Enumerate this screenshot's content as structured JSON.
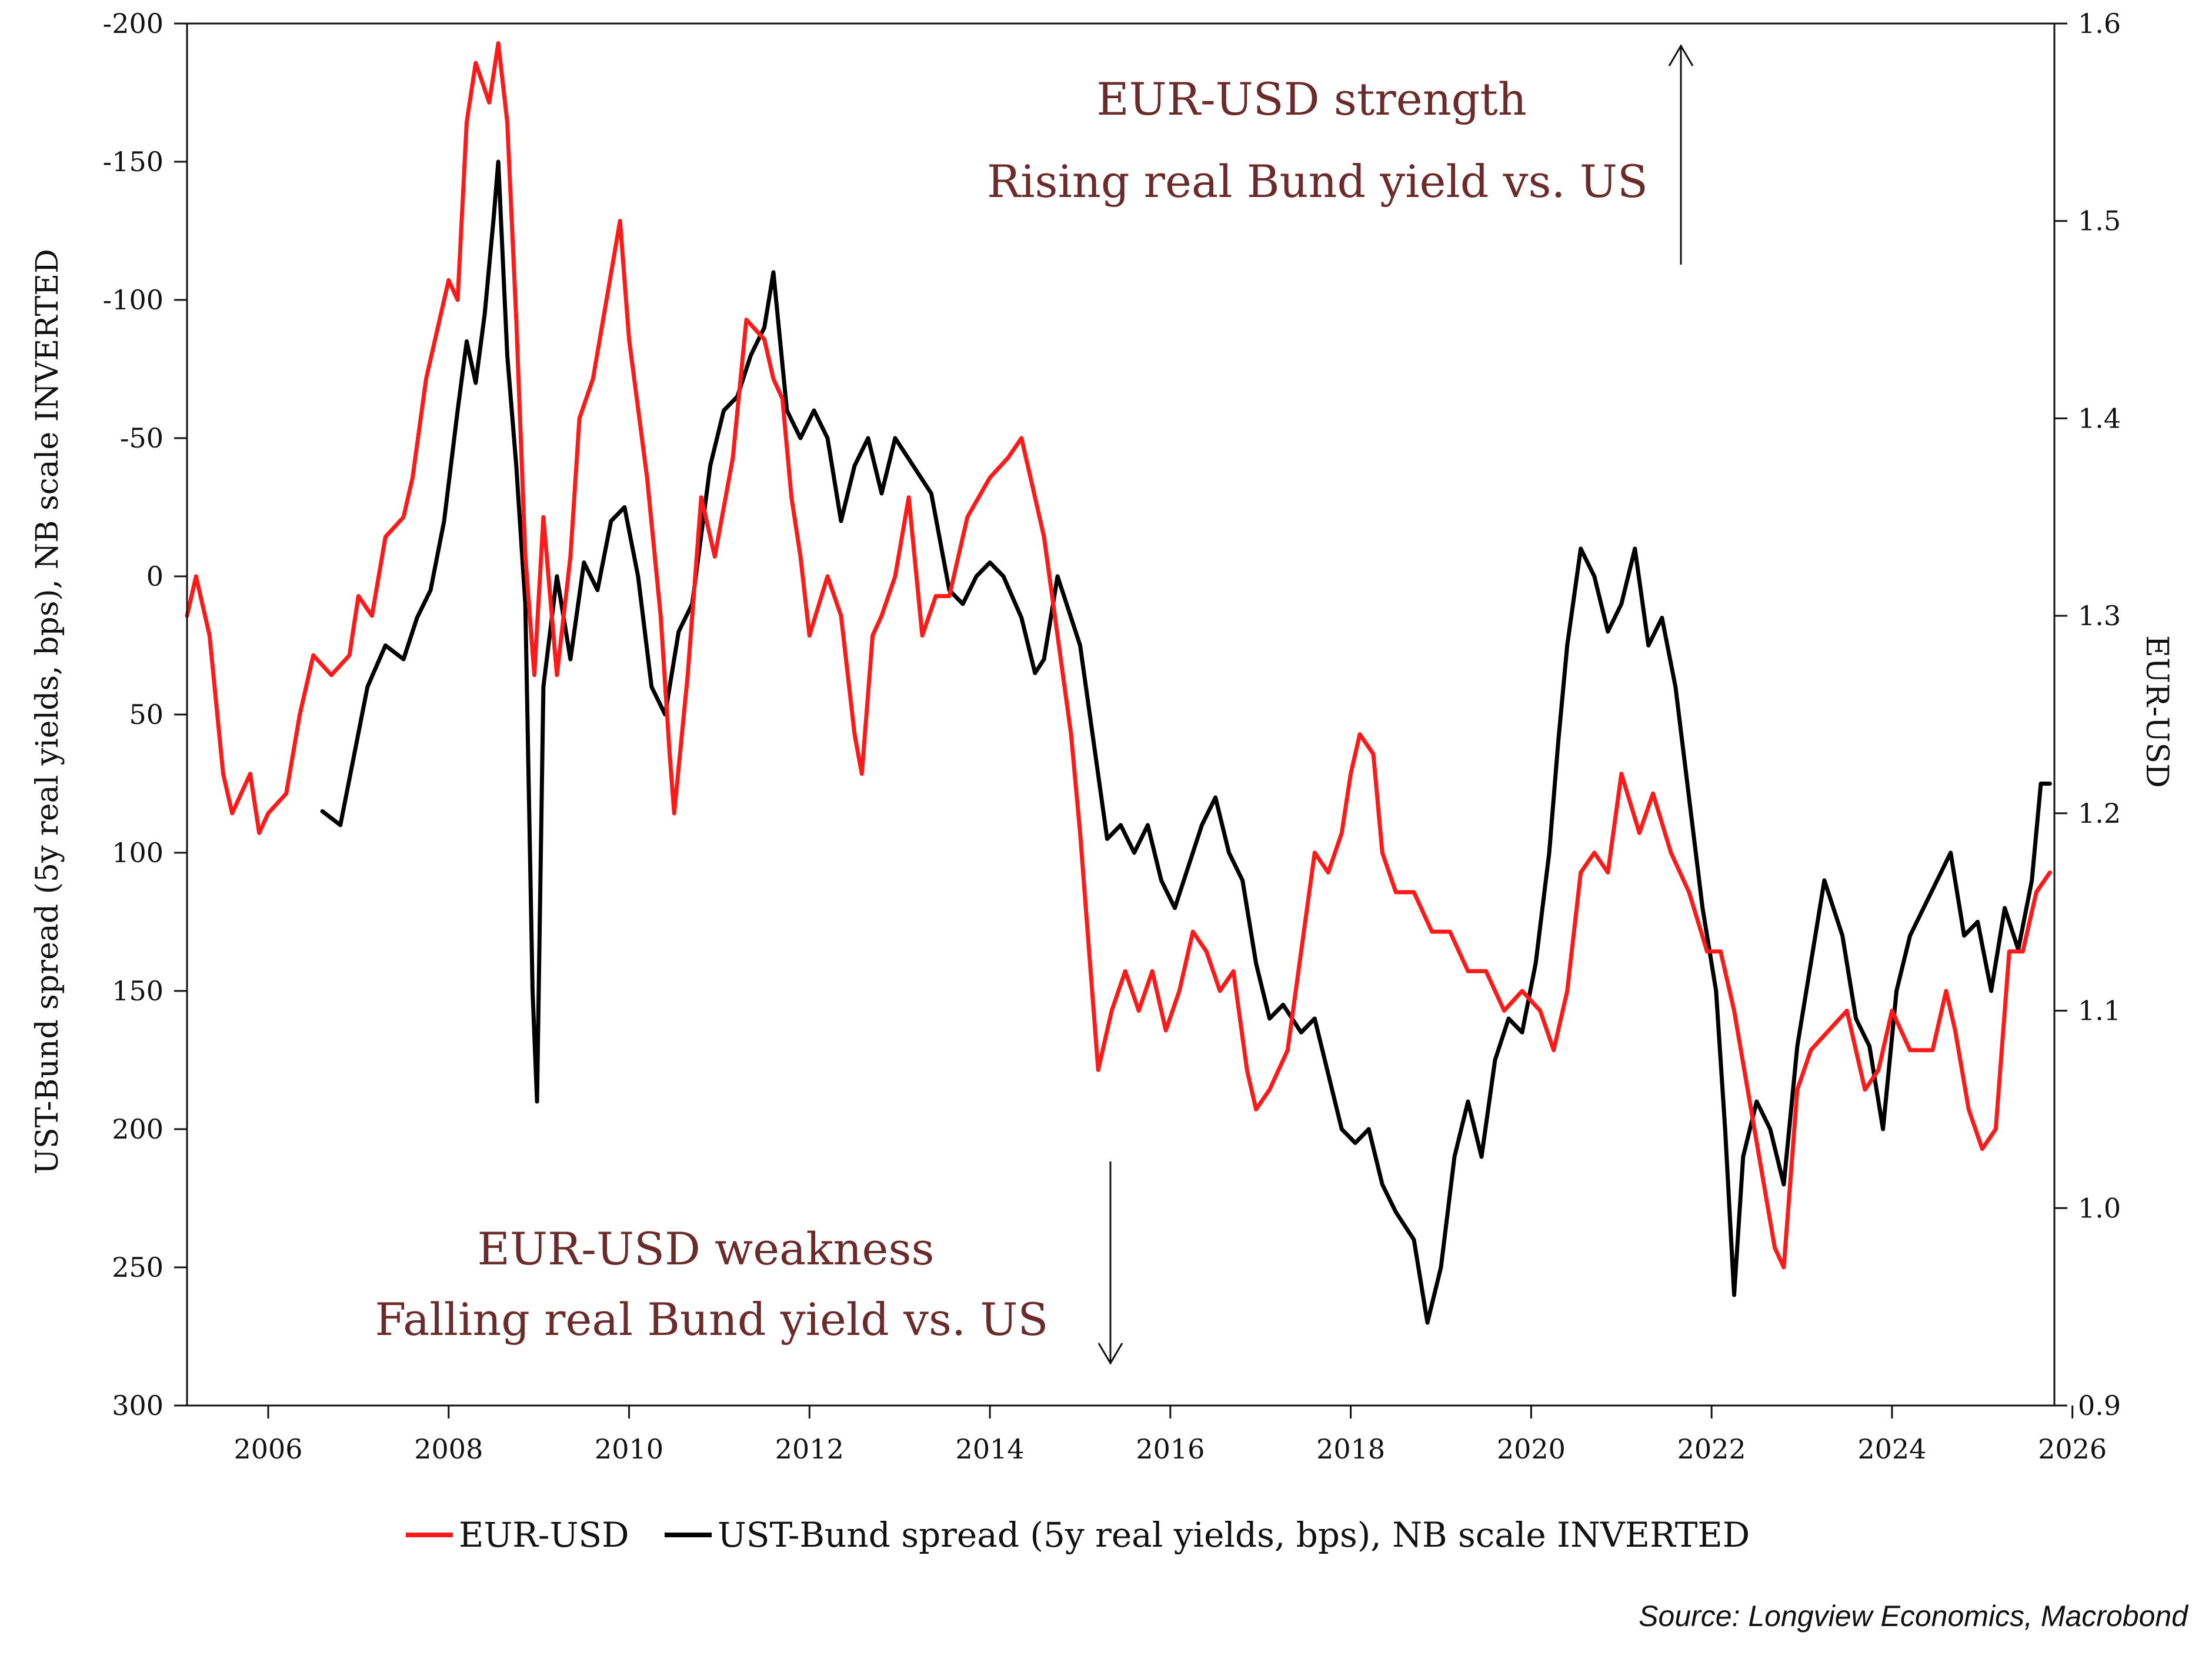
{
  "chart_data": {
    "type": "line",
    "title": "",
    "xlabel": "",
    "ylabel_left": "UST-Bund spread (5y real yields, bps), NB scale INVERTED",
    "ylabel_right": "EUR-USD",
    "x_range": [
      2005.1,
      2025.8
    ],
    "x_ticks": [
      "2006",
      "2008",
      "2010",
      "2012",
      "2014",
      "2016",
      "2018",
      "2020",
      "2022",
      "2024",
      "2026"
    ],
    "y_left_range": [
      -200,
      300
    ],
    "y_left_inverted": true,
    "y_left_ticks": [
      "-200",
      "-150",
      "-100",
      "-50",
      "0",
      "50",
      "100",
      "150",
      "200",
      "250",
      "300"
    ],
    "y_right_range": [
      0.9,
      1.6
    ],
    "y_right_ticks": [
      "1.6",
      "1.5",
      "1.4",
      "1.3",
      "1.2",
      "1.1",
      "1.0",
      "0.9"
    ],
    "grid": false,
    "legend_position": "bottom",
    "series": [
      {
        "name": "EUR-USD",
        "axis": "right",
        "color": "#ff1a1a",
        "points": [
          [
            2005.1,
            1.3
          ],
          [
            2005.2,
            1.32
          ],
          [
            2005.35,
            1.29
          ],
          [
            2005.5,
            1.22
          ],
          [
            2005.6,
            1.2
          ],
          [
            2005.8,
            1.22
          ],
          [
            2005.9,
            1.19
          ],
          [
            2006.0,
            1.2
          ],
          [
            2006.2,
            1.21
          ],
          [
            2006.35,
            1.25
          ],
          [
            2006.5,
            1.28
          ],
          [
            2006.7,
            1.27
          ],
          [
            2006.9,
            1.28
          ],
          [
            2007.0,
            1.31
          ],
          [
            2007.15,
            1.3
          ],
          [
            2007.3,
            1.34
          ],
          [
            2007.5,
            1.35
          ],
          [
            2007.6,
            1.37
          ],
          [
            2007.75,
            1.42
          ],
          [
            2007.85,
            1.44
          ],
          [
            2008.0,
            1.47
          ],
          [
            2008.1,
            1.46
          ],
          [
            2008.2,
            1.55
          ],
          [
            2008.3,
            1.58
          ],
          [
            2008.45,
            1.56
          ],
          [
            2008.55,
            1.59
          ],
          [
            2008.65,
            1.55
          ],
          [
            2008.75,
            1.45
          ],
          [
            2008.85,
            1.33
          ],
          [
            2008.95,
            1.27
          ],
          [
            2009.05,
            1.35
          ],
          [
            2009.2,
            1.27
          ],
          [
            2009.35,
            1.33
          ],
          [
            2009.45,
            1.4
          ],
          [
            2009.6,
            1.42
          ],
          [
            2009.75,
            1.46
          ],
          [
            2009.9,
            1.5
          ],
          [
            2010.0,
            1.44
          ],
          [
            2010.2,
            1.37
          ],
          [
            2010.35,
            1.3
          ],
          [
            2010.45,
            1.23
          ],
          [
            2010.5,
            1.2
          ],
          [
            2010.65,
            1.27
          ],
          [
            2010.8,
            1.36
          ],
          [
            2010.95,
            1.33
          ],
          [
            2011.15,
            1.38
          ],
          [
            2011.3,
            1.45
          ],
          [
            2011.5,
            1.44
          ],
          [
            2011.6,
            1.42
          ],
          [
            2011.7,
            1.41
          ],
          [
            2011.8,
            1.36
          ],
          [
            2011.9,
            1.33
          ],
          [
            2012.0,
            1.29
          ],
          [
            2012.2,
            1.32
          ],
          [
            2012.35,
            1.3
          ],
          [
            2012.5,
            1.24
          ],
          [
            2012.58,
            1.22
          ],
          [
            2012.7,
            1.29
          ],
          [
            2012.8,
            1.3
          ],
          [
            2012.95,
            1.32
          ],
          [
            2013.1,
            1.36
          ],
          [
            2013.25,
            1.29
          ],
          [
            2013.4,
            1.31
          ],
          [
            2013.55,
            1.31
          ],
          [
            2013.75,
            1.35
          ],
          [
            2014.0,
            1.37
          ],
          [
            2014.2,
            1.38
          ],
          [
            2014.35,
            1.39
          ],
          [
            2014.5,
            1.36
          ],
          [
            2014.6,
            1.34
          ],
          [
            2014.75,
            1.29
          ],
          [
            2014.9,
            1.24
          ],
          [
            2015.0,
            1.19
          ],
          [
            2015.1,
            1.13
          ],
          [
            2015.2,
            1.07
          ],
          [
            2015.35,
            1.1
          ],
          [
            2015.5,
            1.12
          ],
          [
            2015.65,
            1.1
          ],
          [
            2015.8,
            1.12
          ],
          [
            2015.95,
            1.09
          ],
          [
            2016.1,
            1.11
          ],
          [
            2016.25,
            1.14
          ],
          [
            2016.4,
            1.13
          ],
          [
            2016.55,
            1.11
          ],
          [
            2016.7,
            1.12
          ],
          [
            2016.85,
            1.07
          ],
          [
            2016.95,
            1.05
          ],
          [
            2017.1,
            1.06
          ],
          [
            2017.3,
            1.08
          ],
          [
            2017.45,
            1.13
          ],
          [
            2017.6,
            1.18
          ],
          [
            2017.75,
            1.17
          ],
          [
            2017.9,
            1.19
          ],
          [
            2018.0,
            1.22
          ],
          [
            2018.1,
            1.24
          ],
          [
            2018.25,
            1.23
          ],
          [
            2018.35,
            1.18
          ],
          [
            2018.5,
            1.16
          ],
          [
            2018.7,
            1.16
          ],
          [
            2018.9,
            1.14
          ],
          [
            2019.1,
            1.14
          ],
          [
            2019.3,
            1.12
          ],
          [
            2019.5,
            1.12
          ],
          [
            2019.7,
            1.1
          ],
          [
            2019.9,
            1.11
          ],
          [
            2020.1,
            1.1
          ],
          [
            2020.25,
            1.08
          ],
          [
            2020.4,
            1.11
          ],
          [
            2020.55,
            1.17
          ],
          [
            2020.7,
            1.18
          ],
          [
            2020.85,
            1.17
          ],
          [
            2021.0,
            1.22
          ],
          [
            2021.2,
            1.19
          ],
          [
            2021.35,
            1.21
          ],
          [
            2021.55,
            1.18
          ],
          [
            2021.75,
            1.16
          ],
          [
            2021.95,
            1.13
          ],
          [
            2022.1,
            1.13
          ],
          [
            2022.25,
            1.1
          ],
          [
            2022.4,
            1.06
          ],
          [
            2022.55,
            1.02
          ],
          [
            2022.7,
            0.98
          ],
          [
            2022.8,
            0.97
          ],
          [
            2022.95,
            1.06
          ],
          [
            2023.1,
            1.08
          ],
          [
            2023.3,
            1.09
          ],
          [
            2023.5,
            1.1
          ],
          [
            2023.7,
            1.06
          ],
          [
            2023.85,
            1.07
          ],
          [
            2024.0,
            1.1
          ],
          [
            2024.2,
            1.08
          ],
          [
            2024.45,
            1.08
          ],
          [
            2024.6,
            1.11
          ],
          [
            2024.7,
            1.09
          ],
          [
            2024.85,
            1.05
          ],
          [
            2025.0,
            1.03
          ],
          [
            2025.15,
            1.04
          ],
          [
            2025.3,
            1.13
          ],
          [
            2025.45,
            1.13
          ],
          [
            2025.6,
            1.16
          ],
          [
            2025.75,
            1.17
          ]
        ]
      },
      {
        "name": "UST-Bund spread (5y real yields, bps), NB scale INVERTED",
        "axis": "left",
        "color": "#000000",
        "points": [
          [
            2006.6,
            85
          ],
          [
            2006.8,
            90
          ],
          [
            2006.95,
            65
          ],
          [
            2007.1,
            40
          ],
          [
            2007.3,
            25
          ],
          [
            2007.5,
            30
          ],
          [
            2007.65,
            15
          ],
          [
            2007.8,
            5
          ],
          [
            2007.95,
            -20
          ],
          [
            2008.1,
            -60
          ],
          [
            2008.2,
            -85
          ],
          [
            2008.3,
            -70
          ],
          [
            2008.4,
            -95
          ],
          [
            2008.5,
            -130
          ],
          [
            2008.55,
            -150
          ],
          [
            2008.65,
            -80
          ],
          [
            2008.75,
            -40
          ],
          [
            2008.85,
            10
          ],
          [
            2008.93,
            150
          ],
          [
            2008.98,
            190
          ],
          [
            2009.05,
            40
          ],
          [
            2009.2,
            0
          ],
          [
            2009.35,
            30
          ],
          [
            2009.5,
            -5
          ],
          [
            2009.65,
            5
          ],
          [
            2009.8,
            -20
          ],
          [
            2009.95,
            -25
          ],
          [
            2010.1,
            0
          ],
          [
            2010.25,
            40
          ],
          [
            2010.4,
            50
          ],
          [
            2010.55,
            20
          ],
          [
            2010.7,
            10
          ],
          [
            2010.9,
            -40
          ],
          [
            2011.05,
            -60
          ],
          [
            2011.2,
            -65
          ],
          [
            2011.35,
            -80
          ],
          [
            2011.5,
            -90
          ],
          [
            2011.6,
            -110
          ],
          [
            2011.75,
            -60
          ],
          [
            2011.9,
            -50
          ],
          [
            2012.05,
            -60
          ],
          [
            2012.2,
            -50
          ],
          [
            2012.35,
            -20
          ],
          [
            2012.5,
            -40
          ],
          [
            2012.65,
            -50
          ],
          [
            2012.8,
            -30
          ],
          [
            2012.95,
            -50
          ],
          [
            2013.15,
            -40
          ],
          [
            2013.35,
            -30
          ],
          [
            2013.55,
            5
          ],
          [
            2013.7,
            10
          ],
          [
            2013.85,
            0
          ],
          [
            2014.0,
            -5
          ],
          [
            2014.15,
            0
          ],
          [
            2014.35,
            15
          ],
          [
            2014.5,
            35
          ],
          [
            2014.6,
            30
          ],
          [
            2014.75,
            0
          ],
          [
            2014.85,
            10
          ],
          [
            2015.0,
            25
          ],
          [
            2015.15,
            60
          ],
          [
            2015.3,
            95
          ],
          [
            2015.45,
            90
          ],
          [
            2015.6,
            100
          ],
          [
            2015.75,
            90
          ],
          [
            2015.9,
            110
          ],
          [
            2016.05,
            120
          ],
          [
            2016.2,
            105
          ],
          [
            2016.35,
            90
          ],
          [
            2016.5,
            80
          ],
          [
            2016.65,
            100
          ],
          [
            2016.8,
            110
          ],
          [
            2016.95,
            140
          ],
          [
            2017.1,
            160
          ],
          [
            2017.25,
            155
          ],
          [
            2017.45,
            165
          ],
          [
            2017.6,
            160
          ],
          [
            2017.75,
            180
          ],
          [
            2017.9,
            200
          ],
          [
            2018.05,
            205
          ],
          [
            2018.2,
            200
          ],
          [
            2018.35,
            220
          ],
          [
            2018.5,
            230
          ],
          [
            2018.7,
            240
          ],
          [
            2018.85,
            270
          ],
          [
            2019.0,
            250
          ],
          [
            2019.15,
            210
          ],
          [
            2019.3,
            190
          ],
          [
            2019.45,
            210
          ],
          [
            2019.6,
            175
          ],
          [
            2019.75,
            160
          ],
          [
            2019.9,
            165
          ],
          [
            2020.05,
            140
          ],
          [
            2020.2,
            100
          ],
          [
            2020.3,
            60
          ],
          [
            2020.4,
            25
          ],
          [
            2020.55,
            -10
          ],
          [
            2020.7,
            0
          ],
          [
            2020.85,
            20
          ],
          [
            2021.0,
            10
          ],
          [
            2021.15,
            -10
          ],
          [
            2021.3,
            25
          ],
          [
            2021.45,
            15
          ],
          [
            2021.6,
            40
          ],
          [
            2021.75,
            80
          ],
          [
            2021.9,
            120
          ],
          [
            2022.05,
            150
          ],
          [
            2022.15,
            200
          ],
          [
            2022.25,
            260
          ],
          [
            2022.35,
            210
          ],
          [
            2022.5,
            190
          ],
          [
            2022.65,
            200
          ],
          [
            2022.8,
            220
          ],
          [
            2022.95,
            170
          ],
          [
            2023.1,
            140
          ],
          [
            2023.25,
            110
          ],
          [
            2023.45,
            130
          ],
          [
            2023.6,
            160
          ],
          [
            2023.75,
            170
          ],
          [
            2023.9,
            200
          ],
          [
            2024.05,
            150
          ],
          [
            2024.2,
            130
          ],
          [
            2024.35,
            120
          ],
          [
            2024.5,
            110
          ],
          [
            2024.65,
            100
          ],
          [
            2024.8,
            130
          ],
          [
            2024.95,
            125
          ],
          [
            2025.1,
            150
          ],
          [
            2025.25,
            120
          ],
          [
            2025.4,
            135
          ],
          [
            2025.55,
            110
          ],
          [
            2025.65,
            75
          ],
          [
            2025.75,
            75
          ]
        ]
      }
    ],
    "annotations": [
      "EUR-USD strength",
      "Rising real Bund yield vs. US",
      "EUR-USD weakness",
      "Falling real Bund yield vs. US"
    ],
    "source": "Source: Longview Economics, Macrobond"
  }
}
